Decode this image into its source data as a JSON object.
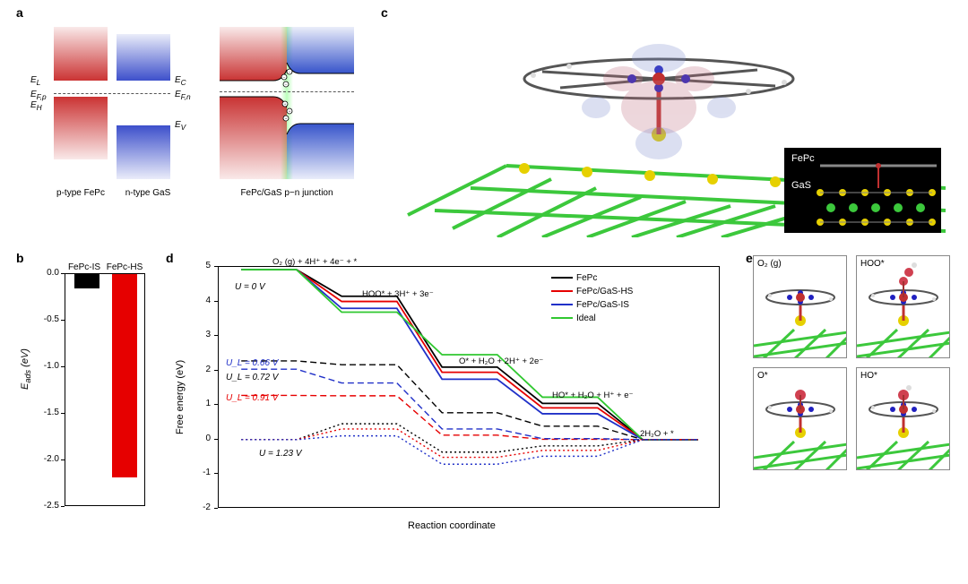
{
  "labels": {
    "a": "a",
    "b": "b",
    "c": "c",
    "d": "d",
    "e": "e"
  },
  "a": {
    "col1": "p-type FePc",
    "col2": "n-type GaS",
    "col3": "FePc/GaS p−n junction",
    "EL": "E_L",
    "EC": "E_C",
    "EFp": "E_{F,p}",
    "EFn": "E_{F,n}",
    "EH": "E_H",
    "EV": "E_V",
    "colors": {
      "p": "#c62828",
      "n": "#2c4bc8",
      "junction_glow": "#c5f5c5"
    }
  },
  "b": {
    "xlabels": [
      "FePc-IS",
      "FePc-HS"
    ],
    "ylabel": "E_{ads} (eV)",
    "ylim": [
      -2.5,
      0.0
    ],
    "ytick_step": 0.5,
    "bars": [
      {
        "label": "FePc-IS",
        "value": -0.15,
        "color": "#000000"
      },
      {
        "label": "FePc-HS",
        "value": -2.18,
        "color": "#e60000"
      }
    ],
    "background": "#ffffff"
  },
  "c": {
    "inset": {
      "top": "FePc",
      "bot": "GaS"
    },
    "atom_colors": {
      "C": "#555555",
      "H": "#dddddd",
      "N": "#2020c0",
      "Fe": "#c03030",
      "O": "#d02020",
      "Ga": "#3cc83c",
      "S": "#e6d000"
    }
  },
  "d": {
    "title_x": "Reaction coordinate",
    "title_y": "Free energy (eV)",
    "ylim": [
      -2,
      5
    ],
    "ytick_step": 1,
    "legend": [
      {
        "name": "FePc",
        "color": "#000000"
      },
      {
        "name": "FePc/GaS-HS",
        "color": "#e60000"
      },
      {
        "name": "FePc/GaS-IS",
        "color": "#2030c8"
      },
      {
        "name": "Ideal",
        "color": "#30c830"
      }
    ],
    "step_labels": [
      "O₂ (g) + 4H⁺ + 4e⁻ + *",
      "HOO* + 3H⁺ + 3e⁻",
      "O* + H₂O + 2H⁺ + 2e⁻",
      "HO* + H₂O + H⁺ + e⁻",
      "2H₂O + *"
    ],
    "potentials": {
      "U0": "U = 0 V",
      "UL1": "U_L = 0.66 V",
      "UL2": "U_L = 0.72 V",
      "UL3": "U_L = 0.91 V",
      "U123": "U = 1.23 V"
    },
    "series_U0": {
      "FePc": [
        4.92,
        4.15,
        2.1,
        1.05,
        0.0
      ],
      "FePc/GaS-HS": [
        4.92,
        4.0,
        1.95,
        0.92,
        0.0
      ],
      "FePc/GaS-IS": [
        4.92,
        3.8,
        1.75,
        0.75,
        0.0
      ],
      "Ideal": [
        4.92,
        3.69,
        2.46,
        1.23,
        0.0
      ]
    },
    "series_UL": {
      "FePc": {
        "U": 0.66,
        "vals": [
          2.28,
          2.17,
          0.78,
          0.39,
          0.0
        ]
      },
      "FePc/GaS-HS": {
        "U": 0.91,
        "vals": [
          1.28,
          1.27,
          0.13,
          0.01,
          0.0
        ]
      },
      "FePc/GaS-IS": {
        "U": 0.72,
        "vals": [
          2.04,
          1.64,
          0.31,
          0.03,
          0.0
        ]
      }
    },
    "series_U123": {
      "FePc": [
        0.0,
        0.46,
        -0.36,
        -0.18,
        0.0
      ],
      "FePc/GaS-HS": [
        0.0,
        0.31,
        -0.51,
        -0.31,
        0.0
      ],
      "FePc/GaS-IS": [
        0.0,
        0.11,
        -0.71,
        -0.48,
        0.0
      ]
    }
  },
  "e": {
    "cells": [
      {
        "label": "O₂ (g)"
      },
      {
        "label": "HOO*"
      },
      {
        "label": "O*"
      },
      {
        "label": "HO*"
      }
    ]
  }
}
